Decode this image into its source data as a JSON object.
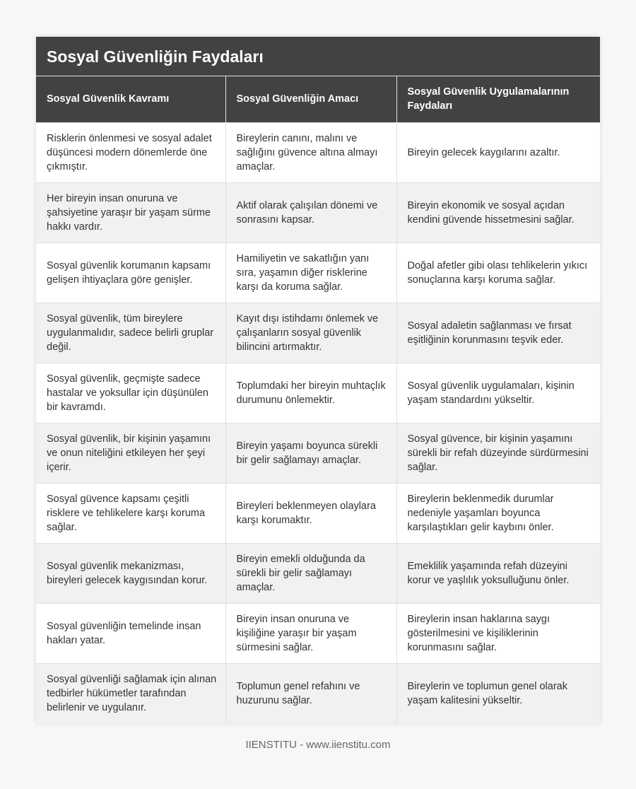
{
  "title": "Sosyal Güvenliğin Faydaları",
  "headers": [
    "Sosyal Güvenlik Kavramı",
    "Sosyal Güvenliğin Amacı",
    "Sosyal Güvenlik Uygulamalarının Faydaları"
  ],
  "rows": [
    [
      "Risklerin önlenmesi ve sosyal adalet düşüncesi modern dönemlerde öne çıkmıştır.",
      "Bireylerin canını, malını ve sağlığını güvence altına almayı amaçlar.",
      "Bireyin gelecek kaygılarını azaltır."
    ],
    [
      "Her bireyin insan onuruna ve şahsiyetine yaraşır bir yaşam sürme hakkı vardır.",
      "Aktif olarak çalışılan dönemi ve sonrasını kapsar.",
      "Bireyin ekonomik ve sosyal açıdan kendini güvende hissetmesini sağlar."
    ],
    [
      "Sosyal güvenlik korumanın kapsamı gelişen ihtiyaçlara göre genişler.",
      "Hamiliyetin ve sakatlığın yanı sıra, yaşamın diğer risklerine karşı da koruma sağlar.",
      "Doğal afetler gibi olası tehlikelerin yıkıcı sonuçlarına karşı koruma sağlar."
    ],
    [
      "Sosyal güvenlik, tüm bireylere uygulanmalıdır, sadece belirli gruplar değil.",
      "Kayıt dışı istihdamı önlemek ve çalışanların sosyal güvenlik bilincini artırmaktır.",
      "Sosyal adaletin sağlanması ve fırsat eşitliğinin korunmasını teşvik eder."
    ],
    [
      "Sosyal güvenlik, geçmişte sadece hastalar ve yoksullar için düşünülen bir kavramdı.",
      "Toplumdaki her bireyin muhtaçlık durumunu önlemektir.",
      "Sosyal güvenlik uygulamaları, kişinin yaşam standardını yükseltir."
    ],
    [
      "Sosyal güvenlik, bir kişinin yaşamını ve onun niteliğini etkileyen her şeyi içerir.",
      "Bireyin yaşamı boyunca sürekli bir gelir sağlamayı amaçlar.",
      "Sosyal güvence, bir kişinin yaşamını sürekli bir refah düzeyinde sürdürmesini sağlar."
    ],
    [
      "Sosyal güvence kapsamı çeşitli risklere ve tehlikelere karşı koruma sağlar.",
      "Bireyleri beklenmeyen olaylara karşı korumaktır.",
      "Bireylerin beklenmedik durumlar nedeniyle yaşamları boyunca karşılaştıkları gelir kaybını önler."
    ],
    [
      "Sosyal güvenlik mekanizması, bireyleri gelecek kaygısından korur.",
      "Bireyin emekli olduğunda da sürekli bir gelir sağlamayı amaçlar.",
      "Emeklilik yaşamında refah düzeyini korur ve yaşlılık yoksulluğunu önler."
    ],
    [
      "Sosyal güvenliğin temelinde insan hakları yatar.",
      "Bireyin insan onuruna ve kişiliğine yaraşır bir yaşam sürmesini sağlar.",
      "Bireylerin insan haklarına saygı gösterilmesini ve kişiliklerinin korunmasını sağlar."
    ],
    [
      "Sosyal güvenliği sağlamak için alınan tedbirler hükümetler tarafından belirlenir ve uygulanır.",
      "Toplumun genel refahını ve huzurunu sağlar.",
      "Bireylerin ve toplumun genel olarak yaşam kalitesini yükseltir."
    ]
  ],
  "footer": "IIENSTITU - www.iienstitu.com"
}
